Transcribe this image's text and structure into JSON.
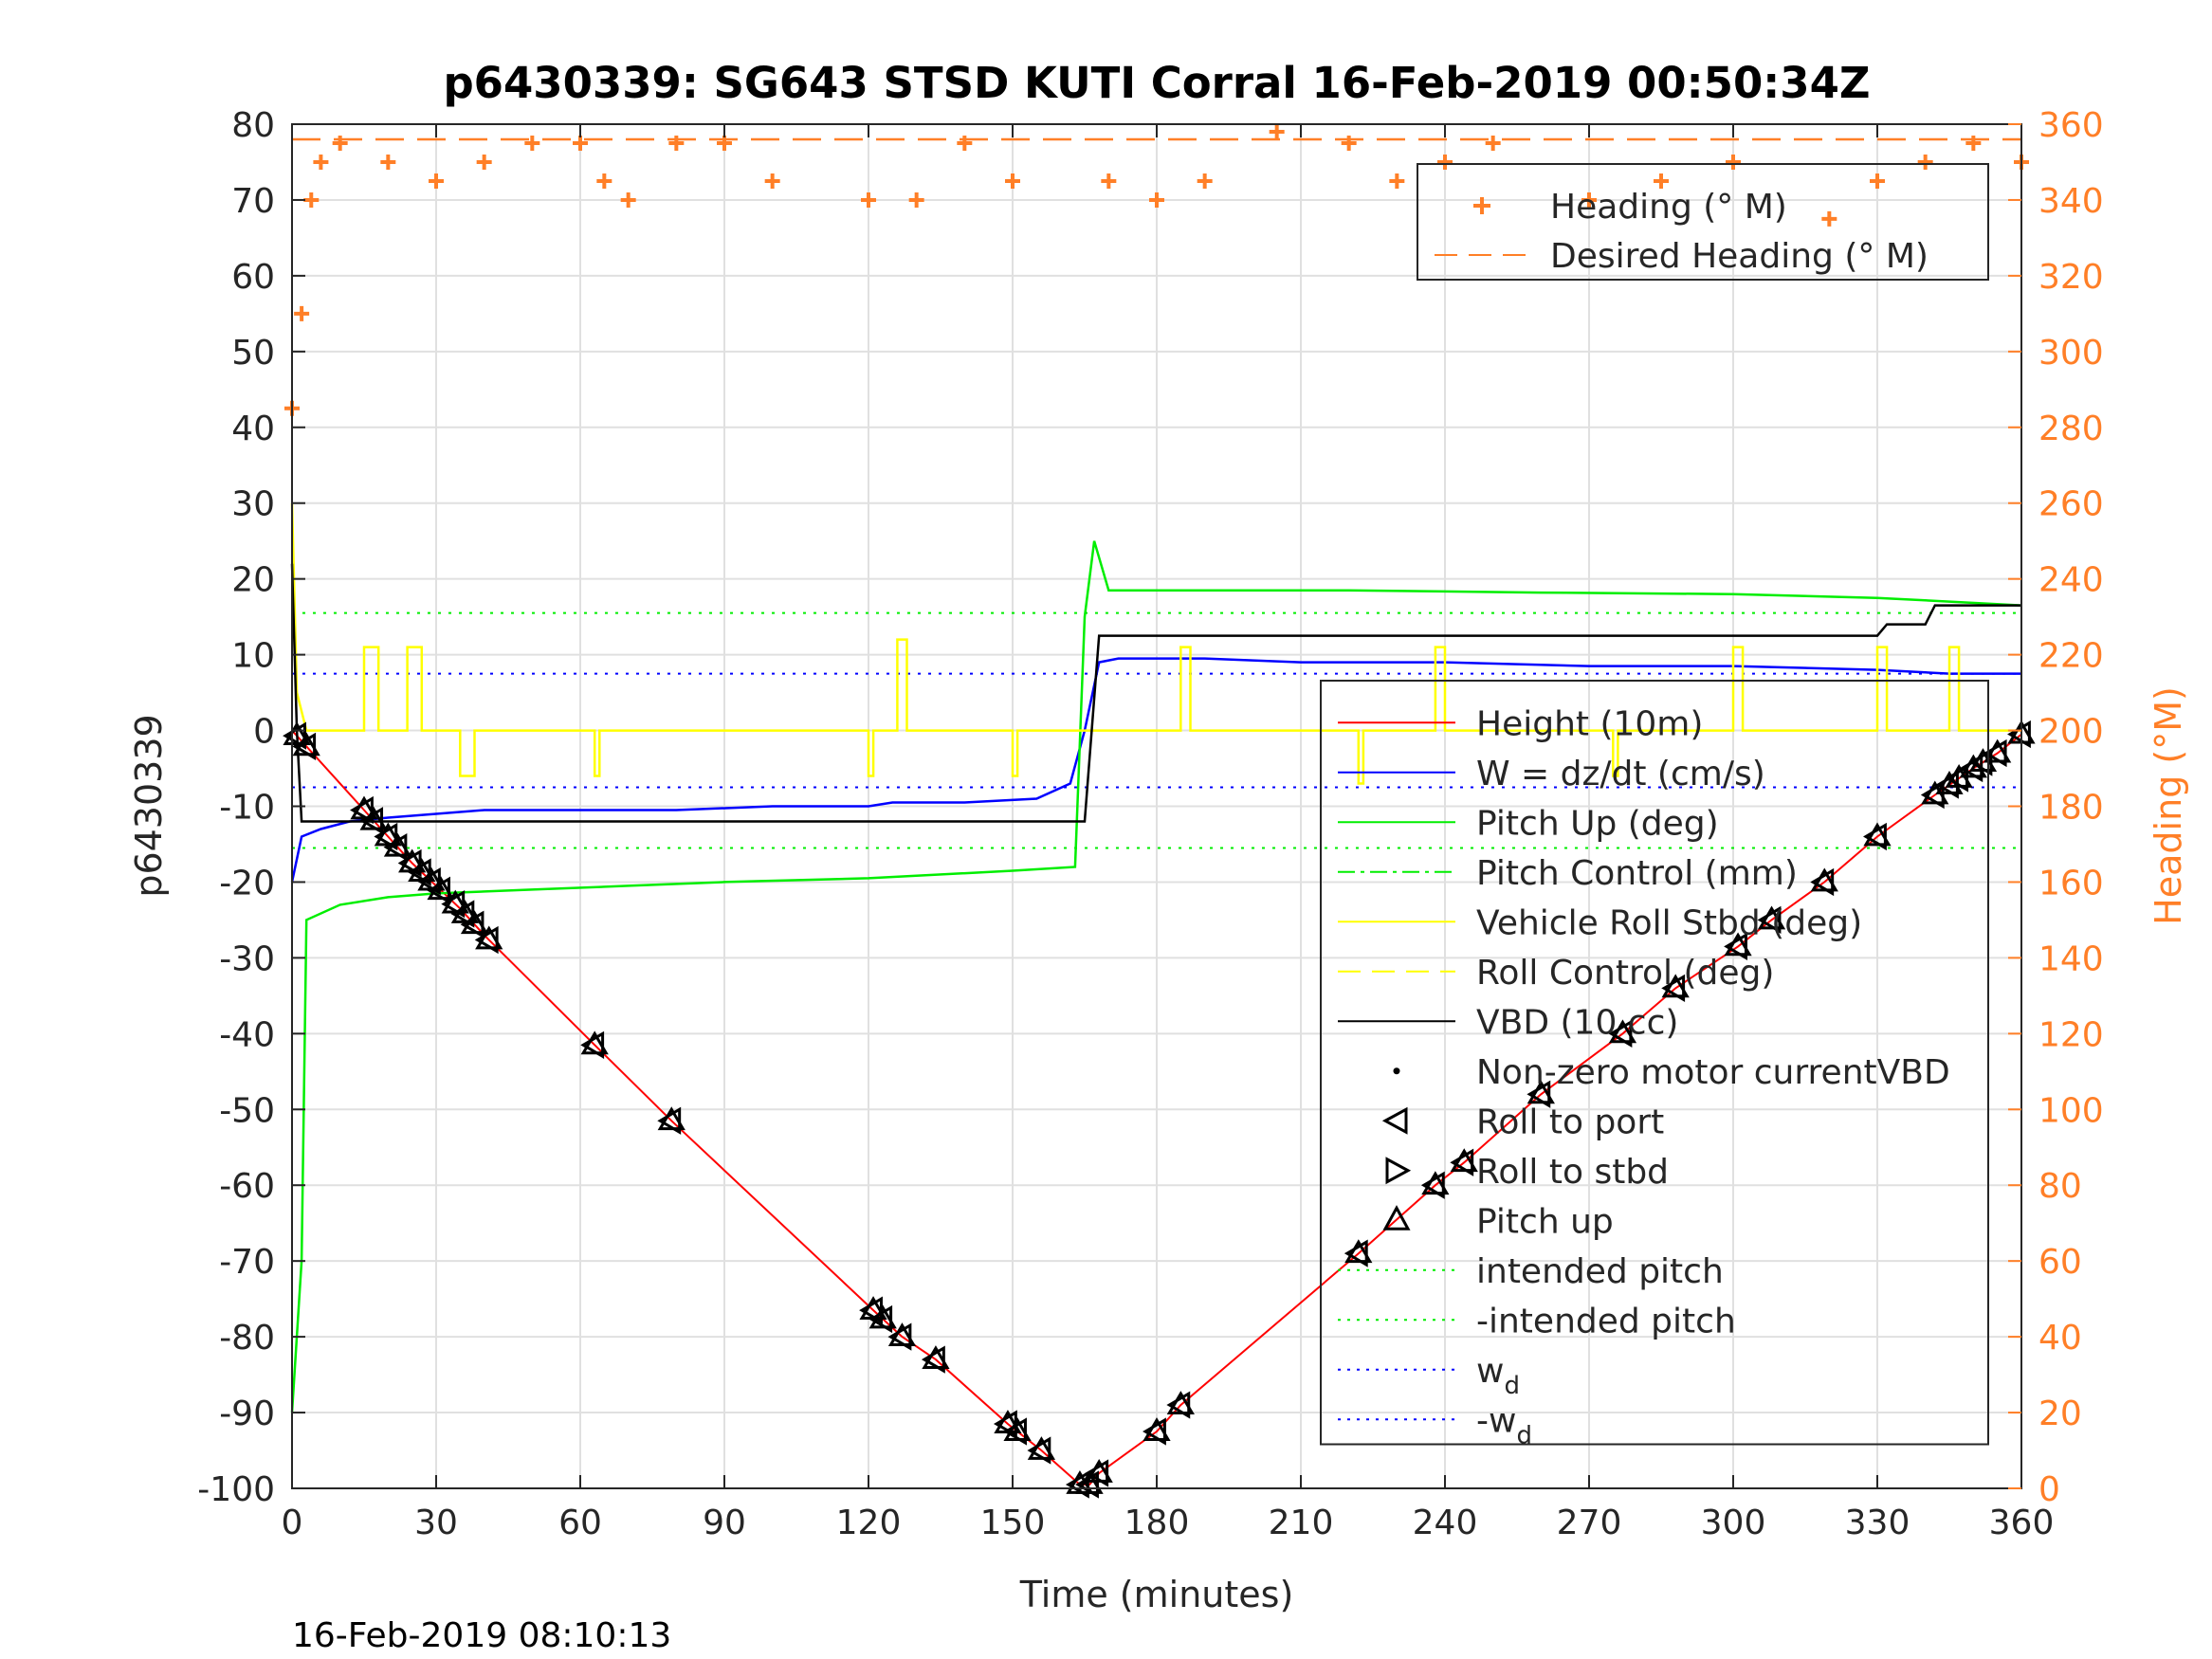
{
  "chart_data": {
    "type": "line",
    "title": "p6430339: SG643 STSD KUTI Corral 16-Feb-2019 00:50:34Z",
    "xlabel": "Time (minutes)",
    "ylabel_left": "p6430339",
    "ylabel_right": "Heading (°M)",
    "footer_timestamp": "16-Feb-2019 08:10:13",
    "xlim": [
      0,
      360
    ],
    "ylim_left": [
      -100,
      80
    ],
    "ylim_right": [
      0,
      360
    ],
    "x_ticks": [
      0,
      30,
      60,
      90,
      120,
      150,
      180,
      210,
      240,
      270,
      300,
      330,
      360
    ],
    "y_ticks_left": [
      -100,
      -90,
      -80,
      -70,
      -60,
      -50,
      -40,
      -30,
      -20,
      -10,
      0,
      10,
      20,
      30,
      40,
      50,
      60,
      70,
      80
    ],
    "y_ticks_right": [
      0,
      20,
      40,
      60,
      80,
      100,
      120,
      140,
      160,
      180,
      200,
      220,
      240,
      260,
      280,
      300,
      320,
      340,
      360
    ],
    "grid": true,
    "colors": {
      "height": "#ff0000",
      "w": "#0000ff",
      "pitch": "#00ee00",
      "roll": "#ffff00",
      "vbd": "#000000",
      "heading": "#ff7f27",
      "heading_axis": "#ff7f27",
      "marker": "#000000"
    },
    "legend_top": [
      {
        "label": "Heading (° M)",
        "style": "plus-marker",
        "color": "#ff7f27"
      },
      {
        "label": "Desired Heading (° M)",
        "style": "dashed",
        "color": "#ff7f27"
      }
    ],
    "legend_main": [
      {
        "label": "Height (10m)",
        "style": "solid",
        "color": "#ff0000"
      },
      {
        "label": "W = dz/dt (cm/s)",
        "style": "solid",
        "color": "#0000ff"
      },
      {
        "label": "Pitch Up (deg)",
        "style": "solid",
        "color": "#00ee00"
      },
      {
        "label": "Pitch Control (mm)",
        "style": "dashdot",
        "color": "#00ee00"
      },
      {
        "label": "Vehicle Roll Stbd (deg)",
        "style": "solid",
        "color": "#ffff00"
      },
      {
        "label": "Roll Control (deg)",
        "style": "dashed",
        "color": "#ffff00"
      },
      {
        "label": "VBD (10 cc)",
        "style": "solid",
        "color": "#000000"
      },
      {
        "label": "Non-zero motor currentVBD",
        "style": "dot",
        "color": "#000000"
      },
      {
        "label": "Roll to port",
        "style": "tri-left",
        "color": "#000000"
      },
      {
        "label": "Roll to stbd",
        "style": "tri-right",
        "color": "#000000"
      },
      {
        "label": "Pitch up",
        "style": "tri-up",
        "color": "#000000"
      },
      {
        "label": "intended pitch",
        "style": "dotted",
        "color": "#00ee00"
      },
      {
        "label": "-intended pitch",
        "style": "dotted",
        "color": "#00ee00"
      },
      {
        "label": "w",
        "sub": "d",
        "style": "dotted",
        "color": "#0000ff"
      },
      {
        "label": "-w",
        "sub": "d",
        "style": "dotted",
        "color": "#0000ff"
      }
    ],
    "series": [
      {
        "name": "Height (10m)",
        "axis": "left",
        "points": [
          [
            0,
            0
          ],
          [
            15,
            -10.5
          ],
          [
            20,
            -14
          ],
          [
            25,
            -17.5
          ],
          [
            30,
            -20.5
          ],
          [
            35,
            -23.5
          ],
          [
            40,
            -27
          ],
          [
            63,
            -41.5
          ],
          [
            79,
            -51.5
          ],
          [
            121,
            -76.5
          ],
          [
            127,
            -80
          ],
          [
            134,
            -83
          ],
          [
            149,
            -91.5
          ],
          [
            156,
            -95
          ],
          [
            164,
            -99.5
          ],
          [
            166,
            -99.5
          ],
          [
            168,
            -98
          ],
          [
            180,
            -92.5
          ],
          [
            185,
            -89
          ],
          [
            222,
            -69
          ],
          [
            238,
            -60
          ],
          [
            244,
            -57
          ],
          [
            260,
            -48
          ],
          [
            277,
            -40
          ],
          [
            288,
            -34
          ],
          [
            301,
            -28.5
          ],
          [
            308,
            -25
          ],
          [
            319,
            -20
          ],
          [
            330,
            -14
          ],
          [
            342,
            -8.5
          ],
          [
            350,
            -5
          ],
          [
            355,
            -3
          ],
          [
            360,
            -0.5
          ]
        ]
      },
      {
        "name": "W = dz/dt (cm/s)",
        "axis": "left",
        "points": [
          [
            0,
            -20
          ],
          [
            2,
            -14
          ],
          [
            6,
            -13
          ],
          [
            12,
            -12
          ],
          [
            20,
            -11.5
          ],
          [
            30,
            -11
          ],
          [
            40,
            -10.5
          ],
          [
            60,
            -10.5
          ],
          [
            80,
            -10.5
          ],
          [
            100,
            -10
          ],
          [
            120,
            -10
          ],
          [
            125,
            -9.5
          ],
          [
            140,
            -9.5
          ],
          [
            155,
            -9
          ],
          [
            162,
            -7
          ],
          [
            165,
            0
          ],
          [
            168,
            9
          ],
          [
            172,
            9.5
          ],
          [
            190,
            9.5
          ],
          [
            210,
            9
          ],
          [
            240,
            9
          ],
          [
            270,
            8.5
          ],
          [
            300,
            8.5
          ],
          [
            330,
            8
          ],
          [
            345,
            7.5
          ],
          [
            360,
            7.5
          ]
        ]
      },
      {
        "name": "Pitch Up (deg)",
        "axis": "left",
        "points": [
          [
            0,
            -90
          ],
          [
            2,
            -70
          ],
          [
            3,
            -25
          ],
          [
            10,
            -23
          ],
          [
            20,
            -22
          ],
          [
            30,
            -21.5
          ],
          [
            50,
            -21
          ],
          [
            70,
            -20.5
          ],
          [
            90,
            -20
          ],
          [
            120,
            -19.5
          ],
          [
            150,
            -18.5
          ],
          [
            163,
            -18
          ],
          [
            165,
            15
          ],
          [
            167,
            25
          ],
          [
            170,
            18.5
          ],
          [
            190,
            18.5
          ],
          [
            220,
            18.5
          ],
          [
            260,
            18.2
          ],
          [
            300,
            18
          ],
          [
            330,
            17.5
          ],
          [
            345,
            17
          ],
          [
            360,
            16.5
          ]
        ]
      },
      {
        "name": "Vehicle Roll Stbd (deg)",
        "axis": "left",
        "points": [
          [
            0,
            30
          ],
          [
            1,
            5
          ],
          [
            3,
            0
          ],
          [
            15,
            0
          ],
          [
            15,
            11
          ],
          [
            18,
            11
          ],
          [
            18,
            0
          ],
          [
            24,
            0
          ],
          [
            24,
            11
          ],
          [
            27,
            11
          ],
          [
            27,
            0
          ],
          [
            35,
            0
          ],
          [
            35,
            -6
          ],
          [
            38,
            -6
          ],
          [
            38,
            0
          ],
          [
            63,
            0
          ],
          [
            63,
            -6
          ],
          [
            64,
            -6
          ],
          [
            64,
            0
          ],
          [
            120,
            0
          ],
          [
            120,
            -6
          ],
          [
            121,
            -6
          ],
          [
            121,
            0
          ],
          [
            126,
            0
          ],
          [
            126,
            12
          ],
          [
            128,
            12
          ],
          [
            128,
            0
          ],
          [
            150,
            0
          ],
          [
            150,
            -6
          ],
          [
            151,
            -6
          ],
          [
            151,
            0
          ],
          [
            168,
            0
          ],
          [
            185,
            0
          ],
          [
            185,
            11
          ],
          [
            187,
            11
          ],
          [
            187,
            0
          ],
          [
            222,
            0
          ],
          [
            222,
            -7
          ],
          [
            223,
            -7
          ],
          [
            223,
            0
          ],
          [
            238,
            0
          ],
          [
            238,
            11
          ],
          [
            240,
            11
          ],
          [
            240,
            0
          ],
          [
            275,
            0
          ],
          [
            275,
            -6
          ],
          [
            276,
            -6
          ],
          [
            276,
            0
          ],
          [
            300,
            0
          ],
          [
            300,
            11
          ],
          [
            302,
            11
          ],
          [
            302,
            0
          ],
          [
            330,
            0
          ],
          [
            330,
            11
          ],
          [
            332,
            11
          ],
          [
            332,
            0
          ],
          [
            345,
            0
          ],
          [
            345,
            11
          ],
          [
            347,
            11
          ],
          [
            347,
            0
          ],
          [
            360,
            0
          ]
        ]
      },
      {
        "name": "VBD (10 cc)",
        "axis": "left",
        "points": [
          [
            0,
            22
          ],
          [
            1,
            0
          ],
          [
            2,
            -12
          ],
          [
            165,
            -12
          ],
          [
            168,
            12.5
          ],
          [
            330,
            12.5
          ],
          [
            332,
            14
          ],
          [
            340,
            14
          ],
          [
            342,
            16.5
          ],
          [
            360,
            16.5
          ]
        ]
      },
      {
        "name": "Heading (° M)",
        "axis": "right",
        "points": [
          [
            0,
            285
          ],
          [
            2,
            310
          ],
          [
            4,
            340
          ],
          [
            6,
            350
          ],
          [
            10,
            355
          ],
          [
            20,
            350
          ],
          [
            30,
            345
          ],
          [
            40,
            350
          ],
          [
            50,
            355
          ],
          [
            60,
            355
          ],
          [
            65,
            345
          ],
          [
            70,
            340
          ],
          [
            80,
            355
          ],
          [
            90,
            355
          ],
          [
            100,
            345
          ],
          [
            120,
            340
          ],
          [
            130,
            340
          ],
          [
            140,
            355
          ],
          [
            150,
            345
          ],
          [
            170,
            345
          ],
          [
            180,
            340
          ],
          [
            190,
            345
          ],
          [
            205,
            358
          ],
          [
            220,
            355
          ],
          [
            230,
            345
          ],
          [
            240,
            350
          ],
          [
            250,
            355
          ],
          [
            270,
            340
          ],
          [
            285,
            345
          ],
          [
            300,
            350
          ],
          [
            320,
            335
          ],
          [
            330,
            345
          ],
          [
            340,
            350
          ],
          [
            350,
            355
          ],
          [
            360,
            350
          ]
        ]
      },
      {
        "name": "Desired Heading (° M)",
        "axis": "right",
        "points": [
          [
            0,
            356
          ],
          [
            360,
            356
          ]
        ]
      }
    ],
    "reference_lines": [
      {
        "name": "intended pitch",
        "axis": "left",
        "value": 15.5
      },
      {
        "name": "-intended pitch",
        "axis": "left",
        "value": -15.5
      },
      {
        "name": "wd",
        "axis": "left",
        "value": 7.5
      },
      {
        "name": "-wd",
        "axis": "left",
        "value": -7.5
      }
    ],
    "markers": {
      "times": [
        1,
        3,
        15,
        17,
        20,
        22,
        25,
        27,
        29,
        31,
        34,
        36,
        38,
        41,
        63,
        79,
        121,
        123,
        127,
        134,
        149,
        151,
        156,
        164,
        166,
        168,
        180,
        185,
        222,
        238,
        244,
        260,
        277,
        288,
        301,
        308,
        319,
        330,
        342,
        345,
        347,
        350,
        352,
        355,
        360
      ]
    }
  }
}
